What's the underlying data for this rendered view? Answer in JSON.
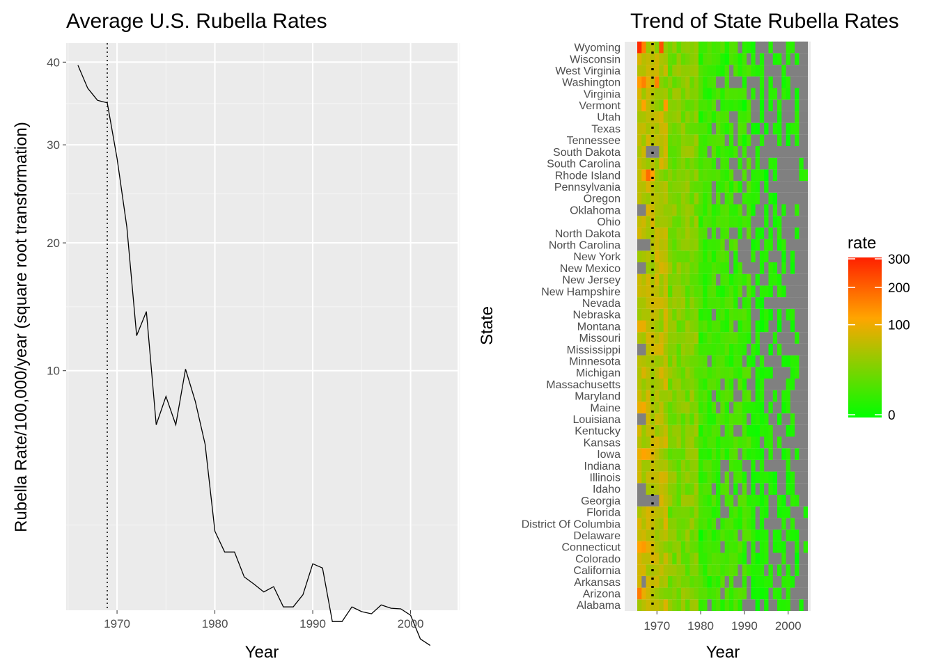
{
  "chart_data": [
    {
      "type": "line",
      "title": "Average U.S. Rubella Rates",
      "xlabel": "Year",
      "ylabel": "Rubella Rate/100,000/year (square root transformation)",
      "y_scale": "sqrt",
      "xlim": [
        1964.8,
        2004.8
      ],
      "ylim": [
        0.5,
        42.5
      ],
      "x_ticks": [
        1970,
        1980,
        1990,
        2000
      ],
      "y_ticks": [
        10,
        20,
        30,
        40
      ],
      "grid": true,
      "vline": {
        "x": 1969,
        "style": "dotted"
      },
      "series": [
        {
          "x": [
            1966,
            1967,
            1968,
            1969,
            1970,
            1971,
            1972,
            1973,
            1974,
            1975,
            1976,
            1977,
            1978,
            1979,
            1980,
            1981,
            1982,
            1983,
            1984,
            1985,
            1986,
            1987,
            1988,
            1989,
            1990,
            1991,
            1992,
            1993,
            1994,
            1995,
            1996,
            1997,
            1998,
            1999,
            2000,
            2001,
            2002
          ],
          "y": [
            39.6,
            36.7,
            35.2,
            34.9,
            28.5,
            21.5,
            12.4,
            14.2,
            6.8,
            8.4,
            6.8,
            10.1,
            8.1,
            5.8,
            2.3,
            1.7,
            1.7,
            1.1,
            0.95,
            0.8,
            0.9,
            0.55,
            0.55,
            0.75,
            1.4,
            1.3,
            0.35,
            0.35,
            0.55,
            0.48,
            0.45,
            0.58,
            0.53,
            0.52,
            0.43,
            0.17,
            0.12
          ]
        }
      ]
    },
    {
      "type": "heatmap",
      "title": "Trend of State Rubella Rates",
      "xlabel": "Year",
      "ylabel": "State",
      "x_ticks": [
        1970,
        1980,
        1990,
        2000
      ],
      "year_start": 1966,
      "year_end": 2004,
      "vline": {
        "x": 1969,
        "style": "dotted"
      },
      "legend": {
        "title": "rate",
        "position": "right",
        "ticks": [
          0,
          100,
          200,
          300
        ],
        "scale": "sqrt",
        "colors": [
          "#00ff00",
          "#ffa500",
          "#ff2000"
        ],
        "na_color": "#808080"
      },
      "states": [
        "Alabama",
        "Arizona",
        "Arkansas",
        "California",
        "Colorado",
        "Connecticut",
        "Delaware",
        "District Of Columbia",
        "Florida",
        "Georgia",
        "Idaho",
        "Illinois",
        "Indiana",
        "Iowa",
        "Kansas",
        "Kentucky",
        "Louisiana",
        "Maine",
        "Maryland",
        "Massachusetts",
        "Michigan",
        "Minnesota",
        "Mississippi",
        "Missouri",
        "Montana",
        "Nebraska",
        "Nevada",
        "New Hampshire",
        "New Jersey",
        "New Mexico",
        "New York",
        "North Carolina",
        "North Dakota",
        "Ohio",
        "Oklahoma",
        "Oregon",
        "Pennsylvania",
        "Rhode Island",
        "South Carolina",
        "South Dakota",
        "Tennessee",
        "Texas",
        "Utah",
        "Vermont",
        "Virginia",
        "Washington",
        "West Virginia",
        "Wisconsin",
        "Wyoming"
      ],
      "levels": {
        "Wyoming": [
          280,
          150,
          40,
          60,
          30,
          220,
          35
        ],
        "Washington": [
          120,
          150,
          90,
          60,
          150,
          30,
          20
        ],
        "Rhode Island": [
          60,
          100,
          180,
          110,
          40,
          30,
          20
        ],
        "Vermont": [
          60,
          110,
          60,
          45,
          35,
          25,
          120
        ],
        "Arizona": [
          160,
          90,
          70,
          50,
          40,
          30,
          25
        ],
        "Connecticut": [
          110,
          120,
          90,
          70,
          50,
          40,
          30
        ],
        "Iowa": [
          90,
          110,
          100,
          80,
          60,
          40,
          30
        ],
        "Maine": [
          90,
          100,
          70,
          50,
          40,
          60,
          30
        ],
        "Montana": [
          90,
          90,
          60,
          50,
          40,
          30,
          70
        ]
      },
      "missing": {
        "Georgia": [
          1966,
          1967,
          1968,
          1969,
          1970
        ],
        "North Carolina": [
          1966,
          1967,
          1968
        ],
        "South Dakota": [
          1968,
          1969,
          1970
        ],
        "Oklahoma": [
          1966,
          1967
        ],
        "Arkansas": [
          1967
        ],
        "Mississippi": [
          1966,
          1967
        ],
        "New Mexico": [
          1966,
          1967
        ],
        "Louisiana": [
          1966,
          1967
        ],
        "Idaho": [
          1966,
          1967
        ]
      }
    }
  ]
}
